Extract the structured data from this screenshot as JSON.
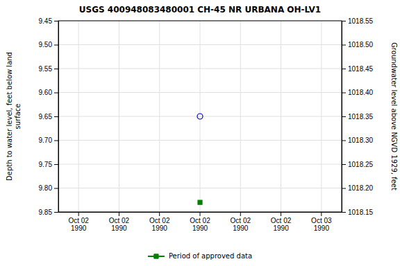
{
  "chart_data": {
    "type": "scatter",
    "title": "USGS 400948083480001 CH-45 NR URBANA OH-LV1",
    "ylabel": "Depth to water level, feet below land\nsurface",
    "y2label": "Groundwater level above NGVD 1929, feet",
    "categories": [
      "Oct 02\n1990",
      "Oct 02\n1990",
      "Oct 02\n1990",
      "Oct 02\n1990",
      "Oct 02\n1990",
      "Oct 02\n1990",
      "Oct 03\n1990"
    ],
    "series": [
      {
        "color": "#0000cc",
        "marker": "open-circle",
        "values": [
          null,
          null,
          null,
          9.65,
          null,
          null,
          null
        ]
      },
      {
        "name": "Period of approved data",
        "color": "#008000",
        "marker": "square",
        "values": [
          null,
          null,
          null,
          9.83,
          null,
          null,
          null
        ]
      }
    ],
    "ylim": [
      9.85,
      9.45
    ],
    "yticks": [
      9.45,
      {
        "value": 9.5,
        "label": "9.50"
      },
      9.55,
      {
        "value": 9.6,
        "label": "9.60"
      },
      9.65,
      {
        "value": 9.7,
        "label": "9.70"
      },
      9.75,
      {
        "value": 9.8,
        "label": "9.80"
      },
      9.85
    ],
    "y2lim": [
      1018.15,
      1018.55
    ],
    "y2ticks": [
      1018.15,
      {
        "value": 1018.2,
        "label": "1018.20"
      },
      1018.25,
      {
        "value": 1018.3,
        "label": "1018.30"
      },
      1018.35,
      {
        "value": 1018.4,
        "label": "1018.40"
      },
      1018.45,
      {
        "value": 1018.5,
        "label": "1018.50"
      },
      1018.55
    ],
    "grid": true,
    "legend": "bottom"
  }
}
